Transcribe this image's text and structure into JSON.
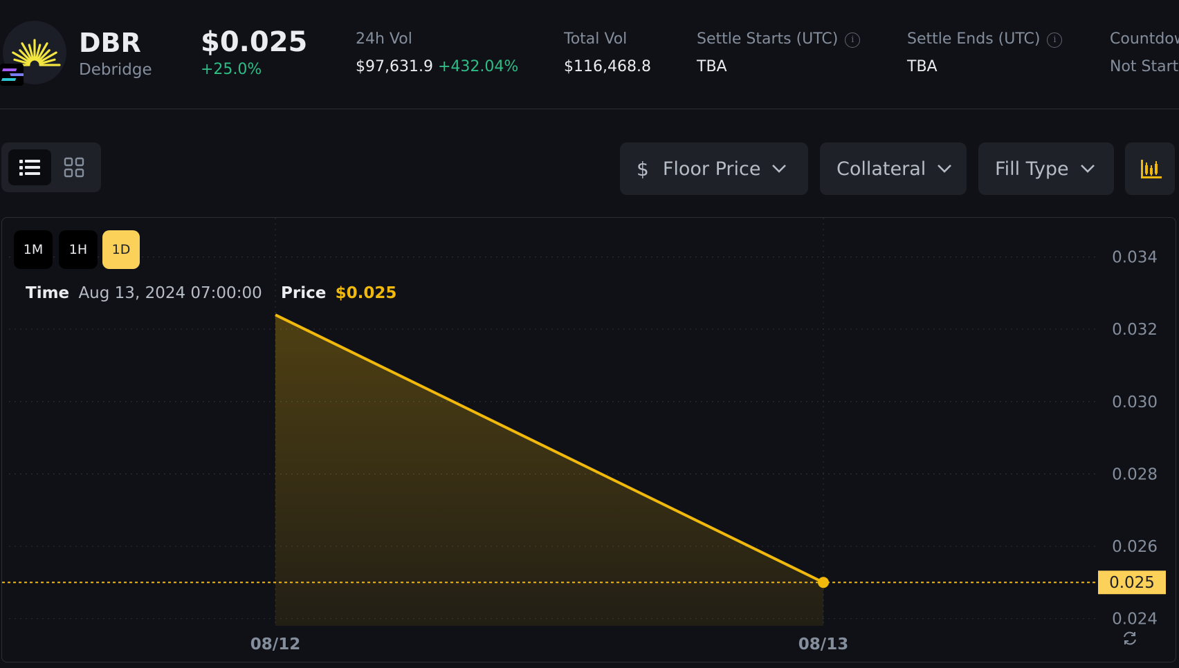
{
  "token": {
    "symbol": "DBR",
    "name": "Debridge",
    "price": "$0.025",
    "change": "+25.0%"
  },
  "stats": {
    "vol24h_label": "24h Vol",
    "vol24h_value": "$97,631.9",
    "vol24h_change": "+432.04%",
    "total_vol_label": "Total Vol",
    "total_vol_value": "$116,468.8",
    "settle_starts_label": "Settle Starts (UTC)",
    "settle_starts_value": "TBA",
    "settle_ends_label": "Settle Ends (UTC)",
    "settle_ends_value": "TBA",
    "countdown_label": "Countdown",
    "countdown_value": "Not Started"
  },
  "toolbar": {
    "floor_price_label": "Floor Price",
    "collateral_label": "Collateral",
    "fill_type_label": "Fill Type"
  },
  "periods": [
    "1M",
    "1H",
    "1D"
  ],
  "active_period": "1D",
  "tooltip": {
    "time_key": "Time",
    "time_value": "Aug 13, 2024 07:00:00",
    "price_key": "Price",
    "price_value": "$0.025"
  },
  "colors": {
    "accent": "#fcd15a",
    "line": "#f0b90b",
    "positive": "#2ebd85"
  },
  "chart_data": {
    "type": "area",
    "x": [
      "08/12",
      "08/13"
    ],
    "series": [
      {
        "values": [
          0.0324,
          0.025
        ]
      }
    ],
    "ylim": [
      0.0238,
      0.0347
    ],
    "yticks": [
      "0.034",
      "0.032",
      "0.030",
      "0.028",
      "0.026",
      "0.024"
    ],
    "current_value_label": "0.025",
    "current_value": 0.025,
    "grid": true
  }
}
